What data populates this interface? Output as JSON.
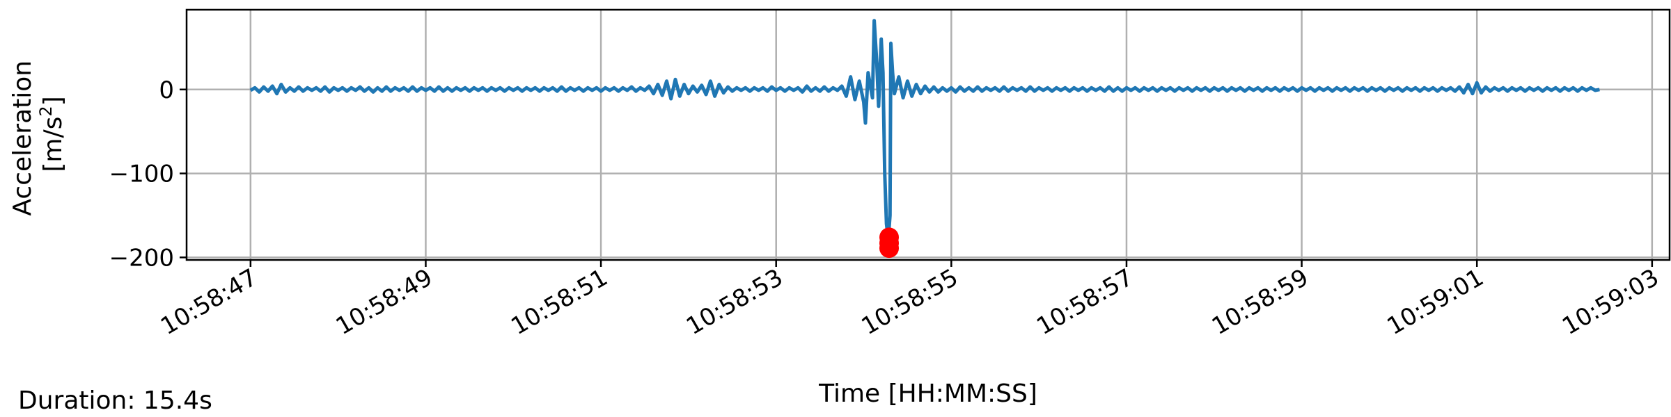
{
  "footer": {
    "duration_text": "Duration: 15.4s"
  },
  "chart_data": {
    "type": "line",
    "title": "",
    "xlabel": "Time [HH:MM:SS]",
    "ylabel_line1": "Acceleration",
    "ylabel_line2_prefix": "[m/s",
    "ylabel_line2_sup": "2",
    "ylabel_line2_suffix": "]",
    "x_unit": "seconds after 10:58:47",
    "xlim": [
      -0.73,
      16.2
    ],
    "ylim": [
      -203,
      95
    ],
    "grid": true,
    "x_ticks": [
      {
        "x": 0,
        "label": "10:58:47"
      },
      {
        "x": 2,
        "label": "10:58:49"
      },
      {
        "x": 4,
        "label": "10:58:51"
      },
      {
        "x": 6,
        "label": "10:58:53"
      },
      {
        "x": 8,
        "label": "10:58:55"
      },
      {
        "x": 10,
        "label": "10:58:57"
      },
      {
        "x": 12,
        "label": "10:58:59"
      },
      {
        "x": 14,
        "label": "10:59:01"
      },
      {
        "x": 16,
        "label": "10:59:03"
      }
    ],
    "y_ticks": [
      {
        "y": 0,
        "label": "0"
      },
      {
        "y": -100,
        "label": "−100"
      },
      {
        "y": -200,
        "label": "−200"
      }
    ],
    "series_color": "#1f77b4",
    "marker_color": "#ff0000",
    "series": [
      {
        "values": [
          [
            0.0,
            -1
          ],
          [
            0.05,
            2
          ],
          [
            0.1,
            -3
          ],
          [
            0.15,
            3
          ],
          [
            0.2,
            -2
          ],
          [
            0.25,
            4
          ],
          [
            0.3,
            -5
          ],
          [
            0.35,
            6
          ],
          [
            0.4,
            -3
          ],
          [
            0.45,
            2
          ],
          [
            0.5,
            -2
          ],
          [
            0.55,
            3
          ],
          [
            0.6,
            -2
          ],
          [
            0.65,
            2
          ],
          [
            0.7,
            -1
          ],
          [
            0.75,
            2
          ],
          [
            0.8,
            -2
          ],
          [
            0.85,
            3
          ],
          [
            0.9,
            -3
          ],
          [
            0.95,
            2
          ],
          [
            1.0,
            -1
          ],
          [
            1.05,
            2
          ],
          [
            1.1,
            -2
          ],
          [
            1.15,
            2
          ],
          [
            1.2,
            -1
          ],
          [
            1.25,
            3
          ],
          [
            1.3,
            -2
          ],
          [
            1.35,
            2
          ],
          [
            1.4,
            -3
          ],
          [
            1.45,
            2
          ],
          [
            1.5,
            -2
          ],
          [
            1.55,
            3
          ],
          [
            1.6,
            -2
          ],
          [
            1.65,
            2
          ],
          [
            1.7,
            -1
          ],
          [
            1.75,
            2
          ],
          [
            1.8,
            -2
          ],
          [
            1.85,
            3
          ],
          [
            1.9,
            -2
          ],
          [
            1.95,
            2
          ],
          [
            2.0,
            -1
          ],
          [
            2.05,
            2
          ],
          [
            2.1,
            -2
          ],
          [
            2.15,
            3
          ],
          [
            2.2,
            -2
          ],
          [
            2.25,
            2
          ],
          [
            2.3,
            -2
          ],
          [
            2.35,
            2
          ],
          [
            2.4,
            -1
          ],
          [
            2.45,
            2
          ],
          [
            2.5,
            -2
          ],
          [
            2.55,
            2
          ],
          [
            2.6,
            -1
          ],
          [
            2.65,
            2
          ],
          [
            2.7,
            -2
          ],
          [
            2.75,
            2
          ],
          [
            2.8,
            -1
          ],
          [
            2.85,
            2
          ],
          [
            2.9,
            -2
          ],
          [
            2.95,
            2
          ],
          [
            3.0,
            -1
          ],
          [
            3.05,
            2
          ],
          [
            3.1,
            -2
          ],
          [
            3.15,
            2
          ],
          [
            3.2,
            -1
          ],
          [
            3.25,
            2
          ],
          [
            3.3,
            -2
          ],
          [
            3.35,
            2
          ],
          [
            3.4,
            -1
          ],
          [
            3.45,
            2
          ],
          [
            3.5,
            -2
          ],
          [
            3.55,
            3
          ],
          [
            3.6,
            -2
          ],
          [
            3.65,
            2
          ],
          [
            3.7,
            -1
          ],
          [
            3.75,
            2
          ],
          [
            3.8,
            -2
          ],
          [
            3.85,
            2
          ],
          [
            3.9,
            -1
          ],
          [
            3.95,
            2
          ],
          [
            4.0,
            -2
          ],
          [
            4.05,
            2
          ],
          [
            4.1,
            -1
          ],
          [
            4.15,
            2
          ],
          [
            4.2,
            -2
          ],
          [
            4.25,
            2
          ],
          [
            4.3,
            -1
          ],
          [
            4.35,
            3
          ],
          [
            4.4,
            -2
          ],
          [
            4.45,
            2
          ],
          [
            4.5,
            -1
          ],
          [
            4.55,
            4
          ],
          [
            4.6,
            -5
          ],
          [
            4.65,
            6
          ],
          [
            4.7,
            -7
          ],
          [
            4.75,
            10
          ],
          [
            4.8,
            -11
          ],
          [
            4.85,
            12
          ],
          [
            4.9,
            -8
          ],
          [
            4.95,
            6
          ],
          [
            5.0,
            -5
          ],
          [
            5.05,
            4
          ],
          [
            5.1,
            -3
          ],
          [
            5.15,
            5
          ],
          [
            5.2,
            -6
          ],
          [
            5.25,
            10
          ],
          [
            5.3,
            -8
          ],
          [
            5.35,
            6
          ],
          [
            5.4,
            -4
          ],
          [
            5.45,
            3
          ],
          [
            5.5,
            -2
          ],
          [
            5.55,
            2
          ],
          [
            5.6,
            -1
          ],
          [
            5.65,
            2
          ],
          [
            5.7,
            -2
          ],
          [
            5.75,
            2
          ],
          [
            5.8,
            -1
          ],
          [
            5.85,
            2
          ],
          [
            5.9,
            -2
          ],
          [
            5.95,
            3
          ],
          [
            6.0,
            -1
          ],
          [
            6.05,
            2
          ],
          [
            6.1,
            -2
          ],
          [
            6.15,
            2
          ],
          [
            6.2,
            -1
          ],
          [
            6.25,
            2
          ],
          [
            6.3,
            -3
          ],
          [
            6.35,
            4
          ],
          [
            6.4,
            -2
          ],
          [
            6.45,
            2
          ],
          [
            6.5,
            -2
          ],
          [
            6.55,
            3
          ],
          [
            6.6,
            -2
          ],
          [
            6.65,
            2
          ],
          [
            6.7,
            -1
          ],
          [
            6.75,
            4
          ],
          [
            6.8,
            -8
          ],
          [
            6.85,
            15
          ],
          [
            6.9,
            -12
          ],
          [
            6.95,
            10
          ],
          [
            7.0,
            -15
          ],
          [
            7.02,
            -40
          ],
          [
            7.05,
            20
          ],
          [
            7.1,
            -10
          ],
          [
            7.12,
            82
          ],
          [
            7.15,
            30
          ],
          [
            7.17,
            -20
          ],
          [
            7.2,
            60
          ],
          [
            7.22,
            20
          ],
          [
            7.24,
            -100
          ],
          [
            7.26,
            -160
          ],
          [
            7.28,
            -178
          ],
          [
            7.3,
            -150
          ],
          [
            7.31,
            55
          ],
          [
            7.33,
            20
          ],
          [
            7.35,
            -5
          ],
          [
            7.4,
            15
          ],
          [
            7.45,
            -10
          ],
          [
            7.5,
            10
          ],
          [
            7.55,
            -8
          ],
          [
            7.6,
            6
          ],
          [
            7.65,
            -5
          ],
          [
            7.7,
            4
          ],
          [
            7.75,
            -3
          ],
          [
            7.8,
            3
          ],
          [
            7.85,
            -3
          ],
          [
            7.9,
            2
          ],
          [
            7.95,
            -2
          ],
          [
            8.0,
            2
          ],
          [
            8.05,
            -3
          ],
          [
            8.1,
            3
          ],
          [
            8.15,
            -2
          ],
          [
            8.2,
            2
          ],
          [
            8.25,
            -2
          ],
          [
            8.3,
            3
          ],
          [
            8.35,
            -2
          ],
          [
            8.4,
            2
          ],
          [
            8.45,
            -1
          ],
          [
            8.5,
            2
          ],
          [
            8.55,
            -2
          ],
          [
            8.6,
            3
          ],
          [
            8.65,
            -2
          ],
          [
            8.7,
            2
          ],
          [
            8.75,
            -1
          ],
          [
            8.8,
            2
          ],
          [
            8.85,
            -2
          ],
          [
            8.9,
            3
          ],
          [
            8.95,
            -2
          ],
          [
            9.0,
            2
          ],
          [
            9.05,
            -1
          ],
          [
            9.1,
            2
          ],
          [
            9.15,
            -2
          ],
          [
            9.2,
            2
          ],
          [
            9.25,
            -1
          ],
          [
            9.3,
            2
          ],
          [
            9.35,
            -2
          ],
          [
            9.4,
            2
          ],
          [
            9.45,
            -1
          ],
          [
            9.5,
            2
          ],
          [
            9.55,
            -2
          ],
          [
            9.6,
            2
          ],
          [
            9.65,
            -1
          ],
          [
            9.7,
            2
          ],
          [
            9.75,
            -2
          ],
          [
            9.8,
            3
          ],
          [
            9.85,
            -2
          ],
          [
            9.9,
            2
          ],
          [
            9.95,
            -2
          ],
          [
            10.0,
            2
          ],
          [
            10.05,
            -1
          ],
          [
            10.1,
            2
          ],
          [
            10.15,
            -2
          ],
          [
            10.2,
            2
          ],
          [
            10.25,
            -1
          ],
          [
            10.3,
            2
          ],
          [
            10.35,
            -2
          ],
          [
            10.4,
            2
          ],
          [
            10.45,
            -1
          ],
          [
            10.5,
            2
          ],
          [
            10.55,
            -2
          ],
          [
            10.6,
            2
          ],
          [
            10.65,
            -1
          ],
          [
            10.7,
            2
          ],
          [
            10.75,
            -2
          ],
          [
            10.8,
            2
          ],
          [
            10.85,
            -1
          ],
          [
            10.9,
            2
          ],
          [
            10.95,
            -2
          ],
          [
            11.0,
            2
          ],
          [
            11.05,
            -1
          ],
          [
            11.1,
            2
          ],
          [
            11.15,
            -2
          ],
          [
            11.2,
            2
          ],
          [
            11.25,
            -1
          ],
          [
            11.3,
            2
          ],
          [
            11.35,
            -2
          ],
          [
            11.4,
            2
          ],
          [
            11.45,
            -1
          ],
          [
            11.5,
            2
          ],
          [
            11.55,
            -2
          ],
          [
            11.6,
            2
          ],
          [
            11.65,
            -1
          ],
          [
            11.7,
            2
          ],
          [
            11.75,
            -2
          ],
          [
            11.8,
            2
          ],
          [
            11.85,
            -1
          ],
          [
            11.9,
            2
          ],
          [
            11.95,
            -2
          ],
          [
            12.0,
            2
          ],
          [
            12.05,
            -1
          ],
          [
            12.1,
            2
          ],
          [
            12.15,
            -2
          ],
          [
            12.2,
            2
          ],
          [
            12.25,
            -1
          ],
          [
            12.3,
            2
          ],
          [
            12.35,
            -2
          ],
          [
            12.4,
            2
          ],
          [
            12.45,
            -1
          ],
          [
            12.5,
            2
          ],
          [
            12.55,
            -2
          ],
          [
            12.6,
            2
          ],
          [
            12.65,
            -1
          ],
          [
            12.7,
            2
          ],
          [
            12.75,
            -2
          ],
          [
            12.8,
            2
          ],
          [
            12.85,
            -1
          ],
          [
            12.9,
            2
          ],
          [
            12.95,
            -2
          ],
          [
            13.0,
            2
          ],
          [
            13.05,
            -1
          ],
          [
            13.1,
            2
          ],
          [
            13.15,
            -2
          ],
          [
            13.2,
            2
          ],
          [
            13.25,
            -1
          ],
          [
            13.3,
            2
          ],
          [
            13.35,
            -2
          ],
          [
            13.4,
            2
          ],
          [
            13.45,
            -1
          ],
          [
            13.5,
            2
          ],
          [
            13.55,
            -2
          ],
          [
            13.6,
            2
          ],
          [
            13.65,
            -1
          ],
          [
            13.7,
            2
          ],
          [
            13.75,
            -2
          ],
          [
            13.8,
            3
          ],
          [
            13.85,
            -4
          ],
          [
            13.9,
            6
          ],
          [
            13.95,
            -5
          ],
          [
            14.0,
            8
          ],
          [
            14.05,
            -4
          ],
          [
            14.1,
            3
          ],
          [
            14.15,
            -2
          ],
          [
            14.2,
            2
          ],
          [
            14.25,
            -1
          ],
          [
            14.3,
            2
          ],
          [
            14.35,
            -2
          ],
          [
            14.4,
            2
          ],
          [
            14.45,
            -1
          ],
          [
            14.5,
            2
          ],
          [
            14.55,
            -2
          ],
          [
            14.6,
            2
          ],
          [
            14.65,
            -1
          ],
          [
            14.7,
            2
          ],
          [
            14.75,
            -2
          ],
          [
            14.8,
            2
          ],
          [
            14.85,
            -1
          ],
          [
            14.9,
            2
          ],
          [
            14.95,
            -2
          ],
          [
            15.0,
            2
          ],
          [
            15.05,
            -1
          ],
          [
            15.1,
            2
          ],
          [
            15.15,
            -2
          ],
          [
            15.2,
            2
          ],
          [
            15.25,
            -1
          ],
          [
            15.3,
            2
          ],
          [
            15.35,
            -1
          ],
          [
            15.4,
            0
          ]
        ]
      }
    ],
    "markers": [
      {
        "x": 7.29,
        "y": -176
      },
      {
        "x": 7.29,
        "y": -183
      },
      {
        "x": 7.29,
        "y": -189
      }
    ]
  }
}
